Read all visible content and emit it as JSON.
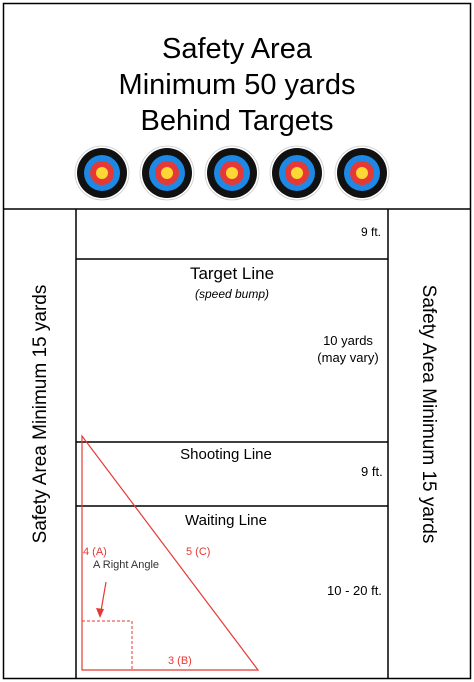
{
  "header": {
    "title_lines": [
      "Safety Area",
      "Minimum 50 yards",
      "Behind Targets"
    ]
  },
  "targets": {
    "count": 5,
    "ring_colors": [
      "#ffffff",
      "#111111",
      "#1e88e5",
      "#e53935",
      "#fdd835"
    ]
  },
  "zones": {
    "front_depth": "9 ft.",
    "target_line_title": "Target Line",
    "target_line_sub": "(speed bump)",
    "range_depth_line1": "10 yards",
    "range_depth_line2": "(may vary)",
    "shooting_line_title": "Shooting Line",
    "shooting_depth": "9 ft.",
    "waiting_line_title": "Waiting Line",
    "waiting_depth": "10 - 20 ft."
  },
  "side_labels": {
    "left": "Safety Area Minimum 15 yards",
    "right": "Safety Area Minimum 15 yards"
  },
  "triangle": {
    "side_a": "4 (A)",
    "side_c": "5 (C)",
    "side_b": "3 (B)",
    "angle_label": "A Right Angle",
    "color": "#e53935"
  }
}
